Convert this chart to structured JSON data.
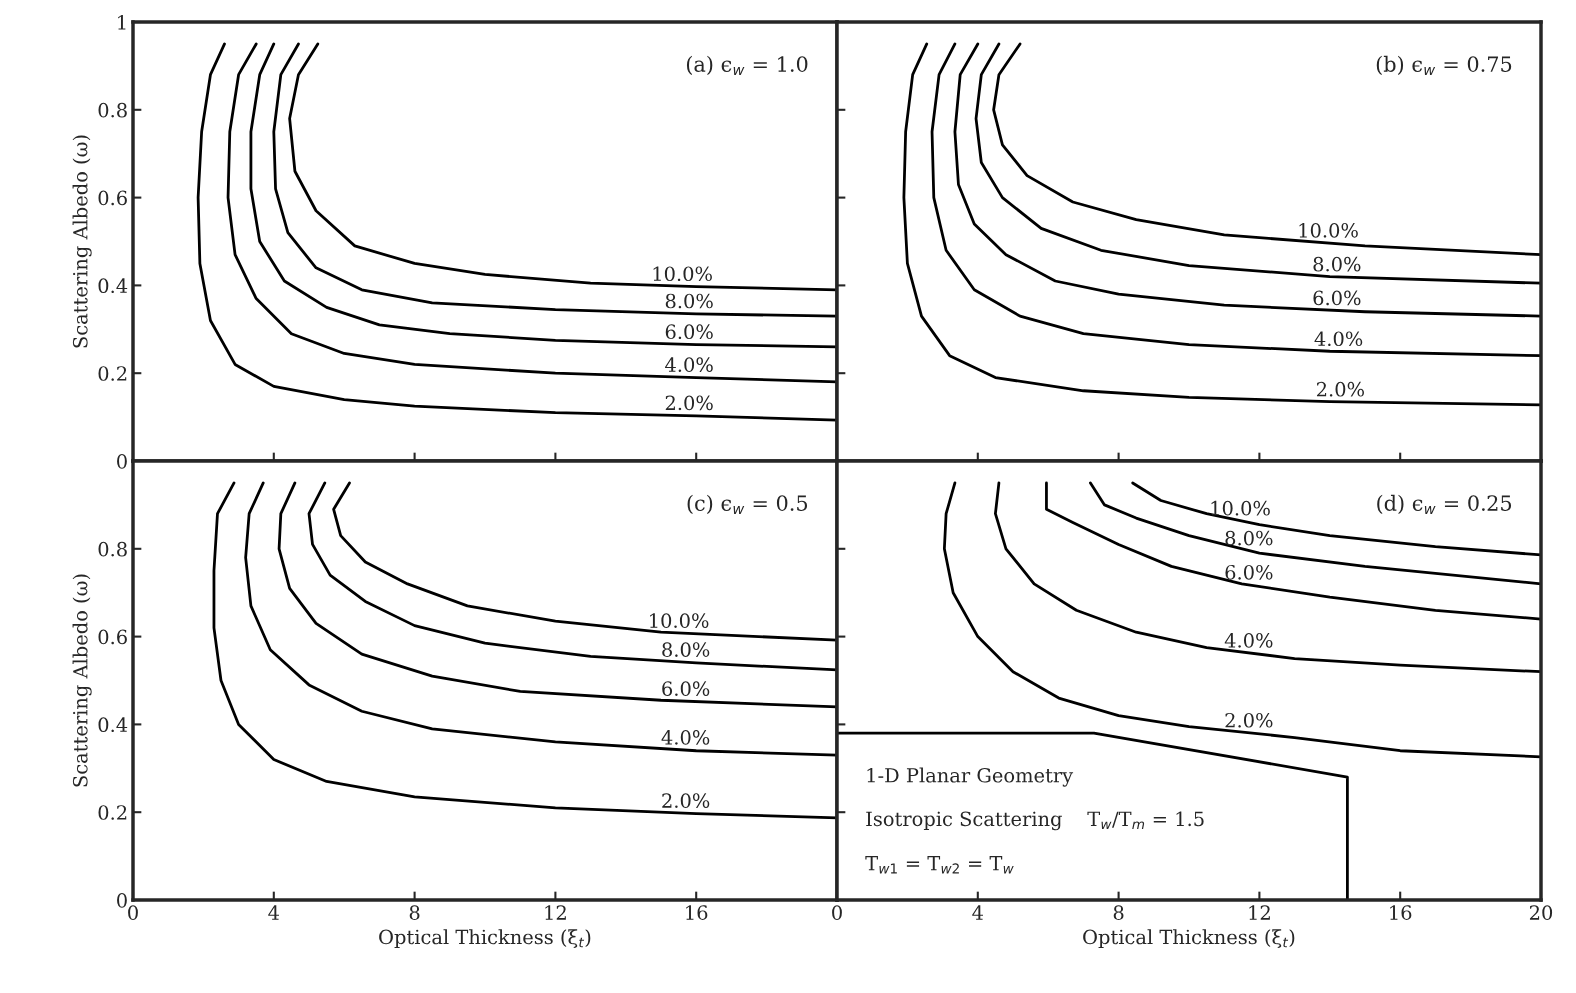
{
  "chart_data": [
    {
      "type": "line",
      "ylabel": "Scattering Albedo (ω)",
      "xlim": [
        0,
        20
      ],
      "ylim": [
        0,
        1
      ],
      "xticks": [
        0,
        4,
        8,
        12,
        16,
        {
          "value": 20,
          "label": null
        }
      ],
      "yticks": [
        0,
        0.2,
        0.4,
        0.6,
        0.8,
        1
      ],
      "tick_labels": "y",
      "grid": false,
      "legend": false,
      "series": [
        {
          "color": "#000000",
          "x": [
            2.6,
            2.2,
            1.95,
            1.85,
            1.9,
            2.2,
            2.9,
            4,
            6,
            8,
            12,
            16,
            20
          ],
          "values": [
            0.95,
            0.88,
            0.75,
            0.6,
            0.45,
            0.32,
            0.22,
            0.17,
            0.14,
            0.125,
            0.11,
            0.103,
            0.093
          ]
        },
        {
          "color": "#000000",
          "x": [
            3.5,
            3.0,
            2.75,
            2.7,
            2.9,
            3.5,
            4.5,
            6,
            8,
            12,
            16,
            20
          ],
          "values": [
            0.95,
            0.88,
            0.75,
            0.6,
            0.47,
            0.37,
            0.29,
            0.245,
            0.22,
            0.2,
            0.19,
            0.18
          ]
        },
        {
          "color": "#000000",
          "x": [
            4.0,
            3.6,
            3.35,
            3.35,
            3.6,
            4.3,
            5.5,
            7,
            9,
            12,
            16,
            20
          ],
          "values": [
            0.95,
            0.88,
            0.75,
            0.62,
            0.5,
            0.41,
            0.35,
            0.31,
            0.29,
            0.275,
            0.265,
            0.26
          ]
        },
        {
          "color": "#000000",
          "x": [
            4.7,
            4.2,
            4.0,
            4.05,
            4.4,
            5.2,
            6.5,
            8.5,
            12,
            16,
            20
          ],
          "values": [
            0.95,
            0.88,
            0.75,
            0.62,
            0.52,
            0.44,
            0.39,
            0.36,
            0.345,
            0.335,
            0.33
          ]
        },
        {
          "color": "#000000",
          "x": [
            5.25,
            4.7,
            4.45,
            4.6,
            5.2,
            6.3,
            8,
            10,
            13,
            16,
            20
          ],
          "values": [
            0.95,
            0.88,
            0.78,
            0.66,
            0.57,
            0.49,
            0.45,
            0.425,
            0.405,
            0.397,
            0.39
          ]
        }
      ],
      "annotations": [
        "(a) ϵ$_{w}$ = 1.0",
        {
          "text": "10.0%",
          "x": 15.6,
          "y": 0.398
        },
        {
          "text": "8.0%",
          "x": 15.8,
          "y": 0.336
        },
        {
          "text": "6.0%",
          "x": 15.8,
          "y": 0.266
        },
        {
          "text": "4.0%",
          "x": 15.8,
          "y": 0.191
        },
        {
          "text": "2.0%",
          "x": 15.8,
          "y": 0.104
        }
      ]
    },
    {
      "type": "line",
      "xlim": [
        0,
        20
      ],
      "ylim": [
        0,
        1
      ],
      "xticks": [
        0,
        4,
        8,
        12,
        16,
        20
      ],
      "yticks": [
        0,
        0.2,
        0.4,
        0.6,
        0.8,
        1
      ],
      "tick_labels": false,
      "grid": false,
      "legend": false,
      "series": [
        {
          "color": "#000000",
          "x": [
            2.55,
            2.15,
            1.95,
            1.9,
            2.0,
            2.4,
            3.2,
            4.5,
            7,
            10,
            14,
            20
          ],
          "values": [
            0.95,
            0.88,
            0.75,
            0.6,
            0.45,
            0.33,
            0.24,
            0.19,
            0.16,
            0.145,
            0.135,
            0.128
          ]
        },
        {
          "color": "#000000",
          "x": [
            3.35,
            2.9,
            2.7,
            2.75,
            3.1,
            3.9,
            5.2,
            7,
            10,
            14,
            20
          ],
          "values": [
            0.95,
            0.88,
            0.75,
            0.6,
            0.48,
            0.39,
            0.33,
            0.29,
            0.265,
            0.25,
            0.24
          ]
        },
        {
          "color": "#000000",
          "x": [
            4.0,
            3.5,
            3.35,
            3.45,
            3.9,
            4.8,
            6.2,
            8,
            11,
            15,
            20
          ],
          "values": [
            0.95,
            0.88,
            0.75,
            0.63,
            0.54,
            0.47,
            0.41,
            0.38,
            0.355,
            0.34,
            0.33
          ]
        },
        {
          "color": "#000000",
          "x": [
            4.6,
            4.1,
            3.95,
            4.1,
            4.7,
            5.8,
            7.5,
            10,
            14,
            20
          ],
          "values": [
            0.95,
            0.88,
            0.78,
            0.68,
            0.6,
            0.53,
            0.48,
            0.445,
            0.42,
            0.405
          ]
        },
        {
          "color": "#000000",
          "x": [
            5.2,
            4.6,
            4.45,
            4.7,
            5.4,
            6.7,
            8.5,
            11,
            15,
            20
          ],
          "values": [
            0.95,
            0.88,
            0.8,
            0.72,
            0.65,
            0.59,
            0.55,
            0.515,
            0.49,
            0.47
          ]
        }
      ],
      "annotations": [
        "(b) ϵ$_{w}$ = 0.75",
        {
          "text": "10.0%",
          "x": 13.95,
          "y": 0.497
        },
        {
          "text": "8.0%",
          "x": 14.2,
          "y": 0.42
        },
        {
          "text": "6.0%",
          "x": 14.2,
          "y": 0.343
        },
        {
          "text": "4.0%",
          "x": 14.25,
          "y": 0.25
        },
        {
          "text": "2.0%",
          "x": 14.3,
          "y": 0.135
        }
      ]
    },
    {
      "type": "line",
      "xlabel": "Optical Thickness (ξ$_{t}$)",
      "ylabel": "Scattering Albedo (ω)",
      "xlim": [
        0,
        20
      ],
      "ylim": [
        0,
        1
      ],
      "xticks": [
        0,
        4,
        8,
        12,
        16,
        {
          "value": 20,
          "label": null
        }
      ],
      "yticks": [
        0,
        0.2,
        0.4,
        0.6,
        0.8,
        {
          "value": 1,
          "label": null
        }
      ],
      "grid": false,
      "legend": false,
      "series": [
        {
          "color": "#000000",
          "x": [
            2.87,
            2.4,
            2.3,
            2.3,
            2.5,
            3.0,
            4,
            5.5,
            8,
            12,
            16,
            20
          ],
          "values": [
            0.95,
            0.88,
            0.75,
            0.62,
            0.5,
            0.4,
            0.32,
            0.27,
            0.235,
            0.21,
            0.197,
            0.187
          ]
        },
        {
          "color": "#000000",
          "x": [
            3.7,
            3.3,
            3.2,
            3.35,
            3.9,
            5,
            6.5,
            8.5,
            12,
            16,
            20
          ],
          "values": [
            0.95,
            0.88,
            0.78,
            0.67,
            0.57,
            0.49,
            0.43,
            0.39,
            0.36,
            0.34,
            0.33
          ]
        },
        {
          "color": "#000000",
          "x": [
            4.6,
            4.2,
            4.15,
            4.45,
            5.2,
            6.5,
            8.5,
            11,
            15,
            20
          ],
          "values": [
            0.95,
            0.88,
            0.8,
            0.71,
            0.63,
            0.56,
            0.51,
            0.475,
            0.455,
            0.44
          ]
        },
        {
          "color": "#000000",
          "x": [
            5.45,
            5.0,
            5.1,
            5.6,
            6.6,
            8,
            10,
            13,
            16,
            20
          ],
          "values": [
            0.95,
            0.88,
            0.81,
            0.74,
            0.68,
            0.625,
            0.585,
            0.555,
            0.54,
            0.524
          ]
        },
        {
          "color": "#000000",
          "x": [
            6.15,
            5.7,
            5.9,
            6.6,
            7.8,
            9.5,
            12,
            15,
            20
          ],
          "values": [
            0.95,
            0.89,
            0.83,
            0.77,
            0.72,
            0.67,
            0.635,
            0.61,
            0.592
          ]
        }
      ],
      "annotations": [
        "(c) ϵ$_{w}$ = 0.5",
        {
          "text": "10.0%",
          "x": 15.5,
          "y": 0.608
        },
        {
          "text": "8.0%",
          "x": 15.7,
          "y": 0.542
        },
        {
          "text": "6.0%",
          "x": 15.7,
          "y": 0.453
        },
        {
          "text": "4.0%",
          "x": 15.7,
          "y": 0.342
        },
        {
          "text": "2.0%",
          "x": 15.7,
          "y": 0.198
        }
      ]
    },
    {
      "type": "line",
      "xlabel": "Optical Thickness (ξ$_{t}$)",
      "xlim": [
        0,
        20
      ],
      "ylim": [
        0,
        1
      ],
      "xticks": [
        0,
        4,
        8,
        12,
        16,
        20
      ],
      "yticks": [
        0,
        0.2,
        0.4,
        0.6,
        0.8,
        1
      ],
      "tick_labels": "x",
      "grid": false,
      "legend": false,
      "series": [
        {
          "color": "#000000",
          "x": [
            3.35,
            3.1,
            3.05,
            3.3,
            4,
            5,
            6.3,
            8,
            10,
            13,
            16,
            20
          ],
          "values": [
            0.95,
            0.88,
            0.8,
            0.7,
            0.6,
            0.52,
            0.46,
            0.42,
            0.395,
            0.37,
            0.34,
            0.326
          ]
        },
        {
          "color": "#000000",
          "x": [
            4.6,
            4.5,
            4.8,
            5.6,
            6.8,
            8.5,
            10.5,
            13,
            16,
            20
          ],
          "values": [
            0.95,
            0.88,
            0.8,
            0.72,
            0.66,
            0.61,
            0.575,
            0.55,
            0.535,
            0.52
          ]
        },
        {
          "color": "#000000",
          "x": [
            5.95,
            5.95,
            6.7,
            8,
            9.5,
            11.5,
            14,
            17,
            20
          ],
          "values": [
            0.95,
            0.89,
            0.86,
            0.81,
            0.76,
            0.72,
            0.69,
            0.66,
            0.64
          ]
        },
        {
          "color": "#000000",
          "x": [
            7.2,
            7.6,
            8.5,
            10,
            12,
            15,
            20
          ],
          "values": [
            0.95,
            0.9,
            0.87,
            0.83,
            0.79,
            0.76,
            0.72
          ]
        },
        {
          "color": "#000000",
          "x": [
            8.4,
            9.2,
            10.5,
            12,
            14,
            17,
            20
          ],
          "values": [
            0.95,
            0.91,
            0.88,
            0.855,
            0.83,
            0.805,
            0.786
          ]
        },
        {
          "color": "#000000",
          "x": [
            0,
            7.3,
            14.5,
            14.5
          ],
          "values": [
            0.38,
            0.38,
            0.28,
            0
          ]
        }
      ],
      "annotations": [
        "(d) ϵ$_{w}$ = 0.25",
        "1-D Planar Geometry",
        "Isotropic Scattering    T$_{w}$/T$_{m}$ = 1.5",
        "T$_{w1}$ = T$_{w2}$ = T$_{w}$",
        {
          "text": "10.0%",
          "x": 11.45,
          "y": 0.864
        },
        {
          "text": "8.0%",
          "x": 11.7,
          "y": 0.796
        },
        {
          "text": "6.0%",
          "x": 11.7,
          "y": 0.718
        },
        {
          "text": "4.0%",
          "x": 11.7,
          "y": 0.563
        },
        {
          "text": "2.0%",
          "x": 11.7,
          "y": 0.381
        }
      ]
    }
  ]
}
